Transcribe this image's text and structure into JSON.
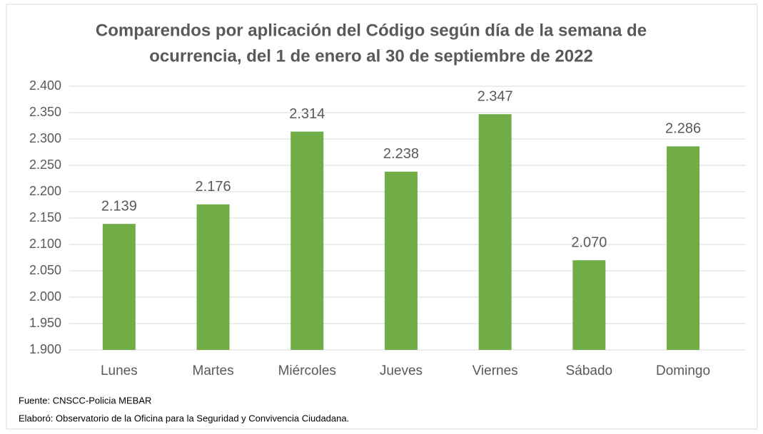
{
  "chart_data": {
    "type": "bar",
    "title": [
      "Comparendos por aplicación del Código según día de la semana de",
      "ocurrencia, del 1 de enero al 30 de septiembre de 2022"
    ],
    "categories": [
      "Lunes",
      "Martes",
      "Miércoles",
      "Jueves",
      "Viernes",
      "Sábado",
      "Domingo"
    ],
    "values": [
      2139,
      2176,
      2314,
      2238,
      2347,
      2070,
      2286
    ],
    "value_labels": [
      "2.139",
      "2.176",
      "2.314",
      "2.238",
      "2.347",
      "2.070",
      "2.286"
    ],
    "color": "#70ad47",
    "ylim": [
      1900,
      2400
    ],
    "yticks": [
      {
        "value": 1900,
        "label": "1.900"
      },
      {
        "value": 1950,
        "label": "1.950"
      },
      {
        "value": 2000,
        "label": "2.000"
      },
      {
        "value": 2050,
        "label": "2.050"
      },
      {
        "value": 2100,
        "label": "2.100"
      },
      {
        "value": 2150,
        "label": "2.150"
      },
      {
        "value": 2200,
        "label": "2.200"
      },
      {
        "value": 2250,
        "label": "2.250"
      },
      {
        "value": 2300,
        "label": "2.300"
      },
      {
        "value": 2350,
        "label": "2.350"
      },
      {
        "value": 2400,
        "label": "2.400"
      }
    ],
    "grid": true,
    "notes": [
      "Fuente: CNSCC-Policia MEBAR",
      "Elaboró: Observatorio de la Oficina para la Seguridad y Convivencia Ciudadana."
    ]
  }
}
